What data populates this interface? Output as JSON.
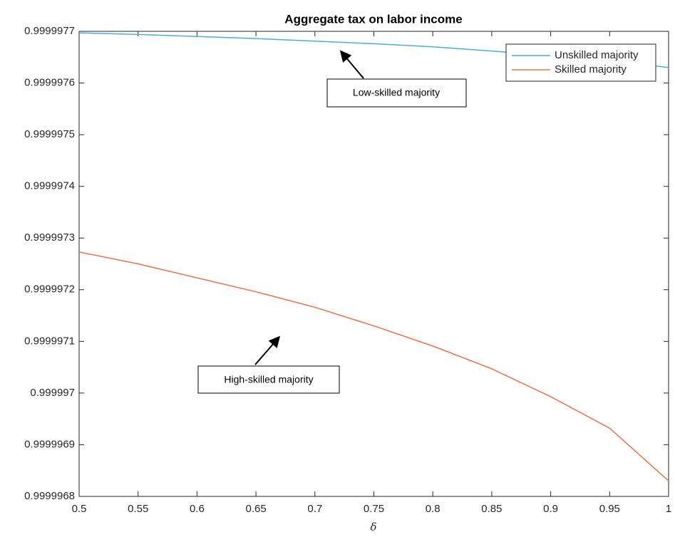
{
  "chart_data": {
    "type": "line",
    "title": "Aggregate tax on labor income",
    "x_label": "δ",
    "x": [
      0.5,
      0.55,
      0.6,
      0.65,
      0.7,
      0.75,
      0.8,
      0.85,
      0.9,
      0.95,
      1
    ],
    "series": [
      {
        "name": "Unskilled majority",
        "color": "#4dacd9",
        "values": [
          0.999997697,
          0.999997694,
          0.99999769,
          0.999997686,
          0.999997681,
          0.999997676,
          0.99999767,
          0.999997662,
          0.999997653,
          0.999997643,
          0.99999763
        ]
      },
      {
        "name": "Skilled majority",
        "color": "#e8704a",
        "values": [
          0.999997273,
          0.99999725,
          0.999997223,
          0.999997196,
          0.999997166,
          0.99999713,
          0.999997091,
          0.999997047,
          0.999996993,
          0.999996932,
          0.99999683
        ]
      }
    ],
    "xlim": [
      0.5,
      1
    ],
    "xticks": [
      0.5,
      0.55,
      0.6,
      0.65,
      0.7,
      0.75,
      0.8,
      0.85,
      0.9,
      0.95,
      1
    ],
    "ylim": [
      0.9999968,
      0.9999977
    ],
    "yticks": [
      0.9999968,
      0.9999969,
      0.999997,
      0.9999971,
      0.9999972,
      0.9999973,
      0.9999974,
      0.9999975,
      0.9999976,
      0.9999977
    ],
    "legend": "upper right",
    "annotations": [
      "Low-skilled majority",
      "High-skilled majority"
    ]
  }
}
